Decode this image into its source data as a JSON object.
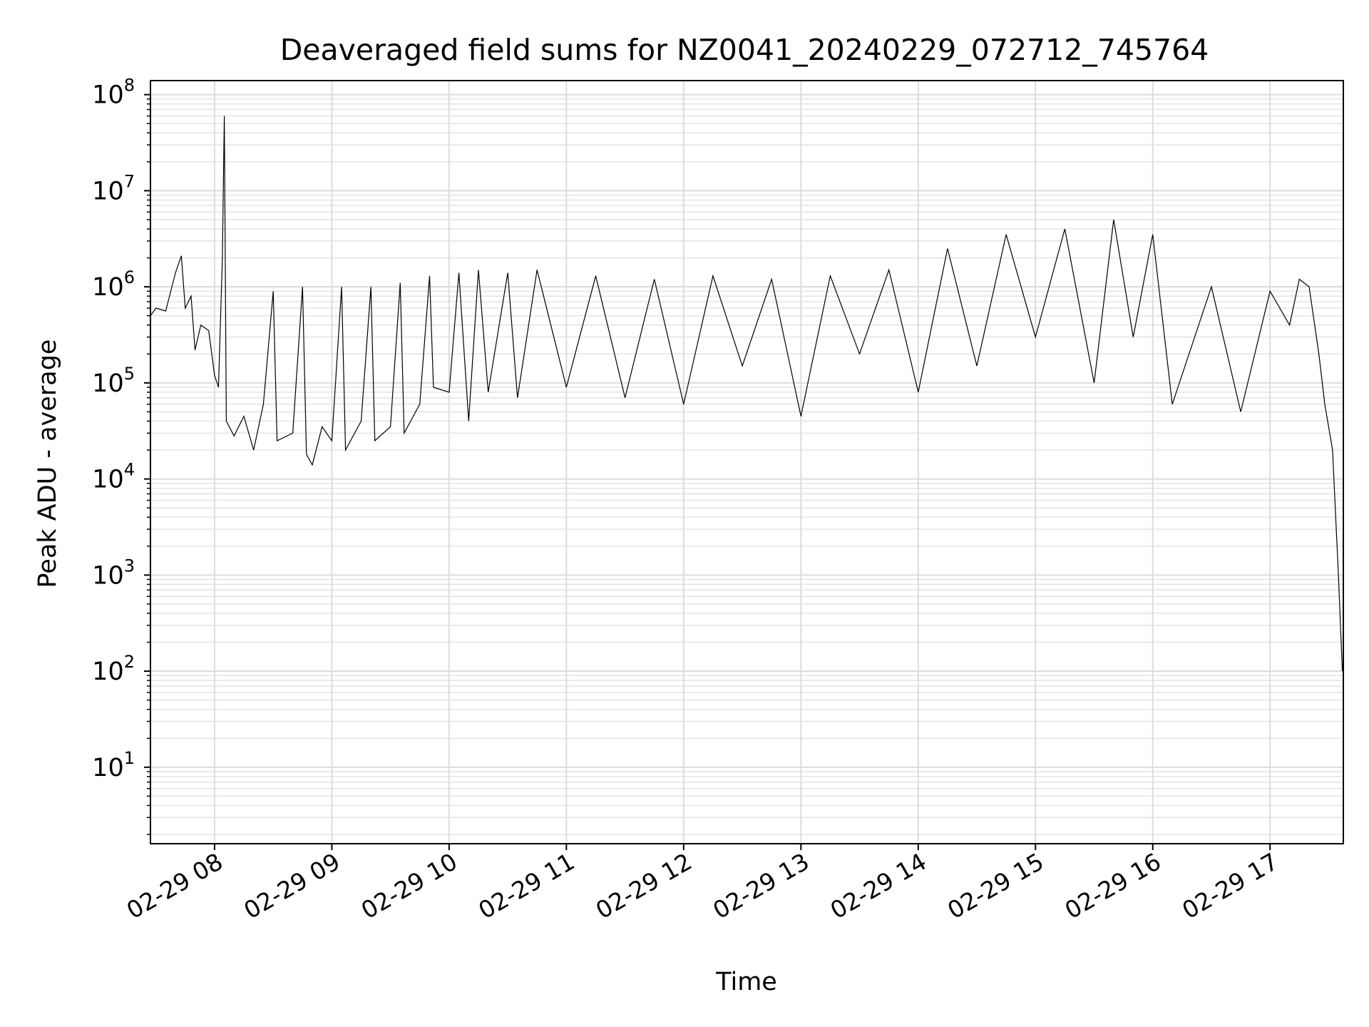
{
  "chart_data": {
    "type": "line",
    "title": "Deaveraged field sums for NZ0041_20240229_072712_745764",
    "xlabel": "Time",
    "ylabel": "Peak ADU - average",
    "yscale": "log",
    "ylim": [
      1.6,
      140000000
    ],
    "xlim": [
      "2024-02-29 07:27:12",
      "2024-02-29 17:37:30"
    ],
    "grid": true,
    "y_tick_labels": [
      {
        "value": 10,
        "base": "10",
        "exp": "1"
      },
      {
        "value": 100,
        "base": "10",
        "exp": "2"
      },
      {
        "value": 1000,
        "base": "10",
        "exp": "3"
      },
      {
        "value": 10000,
        "base": "10",
        "exp": "4"
      },
      {
        "value": 100000,
        "base": "10",
        "exp": "5"
      },
      {
        "value": 1000000,
        "base": "10",
        "exp": "6"
      },
      {
        "value": 10000000,
        "base": "10",
        "exp": "7"
      },
      {
        "value": 100000000,
        "base": "10",
        "exp": "8"
      }
    ],
    "x_ticks": [
      {
        "t": "2024-02-29 08:00",
        "label": "02-29 08"
      },
      {
        "t": "2024-02-29 09:00",
        "label": "02-29 09"
      },
      {
        "t": "2024-02-29 10:00",
        "label": "02-29 10"
      },
      {
        "t": "2024-02-29 11:00",
        "label": "02-29 11"
      },
      {
        "t": "2024-02-29 12:00",
        "label": "02-29 12"
      },
      {
        "t": "2024-02-29 13:00",
        "label": "02-29 13"
      },
      {
        "t": "2024-02-29 14:00",
        "label": "02-29 14"
      },
      {
        "t": "2024-02-29 15:00",
        "label": "02-29 15"
      },
      {
        "t": "2024-02-29 16:00",
        "label": "02-29 16"
      },
      {
        "t": "2024-02-29 17:00",
        "label": "02-29 17"
      }
    ],
    "series": [
      {
        "color": "#000000",
        "points": [
          [
            "2024-02-29 07:27:12",
            500000
          ],
          [
            "2024-02-29 07:30",
            600000
          ],
          [
            "2024-02-29 07:35",
            560000
          ],
          [
            "2024-02-29 07:40",
            1400000
          ],
          [
            "2024-02-29 07:43",
            2100000
          ],
          [
            "2024-02-29 07:45",
            600000
          ],
          [
            "2024-02-29 07:48",
            800000
          ],
          [
            "2024-02-29 07:50",
            220000
          ],
          [
            "2024-02-29 07:53",
            400000
          ],
          [
            "2024-02-29 07:57",
            350000
          ],
          [
            "2024-02-29 08:00",
            120000
          ],
          [
            "2024-02-29 08:02",
            90000
          ],
          [
            "2024-02-29 08:04",
            2000000
          ],
          [
            "2024-02-29 08:05",
            60000000
          ],
          [
            "2024-02-29 08:06",
            40000
          ],
          [
            "2024-02-29 08:10",
            28000
          ],
          [
            "2024-02-29 08:15",
            45000
          ],
          [
            "2024-02-29 08:20",
            20000
          ],
          [
            "2024-02-29 08:25",
            60000
          ],
          [
            "2024-02-29 08:30",
            900000
          ],
          [
            "2024-02-29 08:32",
            25000
          ],
          [
            "2024-02-29 08:40",
            30000
          ],
          [
            "2024-02-29 08:45",
            1000000
          ],
          [
            "2024-02-29 08:47",
            18000
          ],
          [
            "2024-02-29 08:50",
            14000
          ],
          [
            "2024-02-29 08:55",
            35000
          ],
          [
            "2024-02-29 09:00",
            25000
          ],
          [
            "2024-02-29 09:05",
            1000000
          ],
          [
            "2024-02-29 09:07",
            20000
          ],
          [
            "2024-02-29 09:15",
            40000
          ],
          [
            "2024-02-29 09:20",
            1000000
          ],
          [
            "2024-02-29 09:22",
            25000
          ],
          [
            "2024-02-29 09:30",
            35000
          ],
          [
            "2024-02-29 09:35",
            1100000
          ],
          [
            "2024-02-29 09:37",
            30000
          ],
          [
            "2024-02-29 09:45",
            60000
          ],
          [
            "2024-02-29 09:50",
            1300000
          ],
          [
            "2024-02-29 09:52",
            90000
          ],
          [
            "2024-02-29 10:00",
            80000
          ],
          [
            "2024-02-29 10:05",
            1400000
          ],
          [
            "2024-02-29 10:10",
            40000
          ],
          [
            "2024-02-29 10:15",
            1500000
          ],
          [
            "2024-02-29 10:20",
            80000
          ],
          [
            "2024-02-29 10:30",
            1400000
          ],
          [
            "2024-02-29 10:35",
            70000
          ],
          [
            "2024-02-29 10:45",
            1500000
          ],
          [
            "2024-02-29 11:00",
            90000
          ],
          [
            "2024-02-29 11:15",
            1300000
          ],
          [
            "2024-02-29 11:30",
            70000
          ],
          [
            "2024-02-29 11:45",
            1200000
          ],
          [
            "2024-02-29 12:00",
            60000
          ],
          [
            "2024-02-29 12:15",
            1300000
          ],
          [
            "2024-02-29 12:30",
            150000
          ],
          [
            "2024-02-29 12:45",
            1200000
          ],
          [
            "2024-02-29 13:00",
            45000
          ],
          [
            "2024-02-29 13:15",
            1300000
          ],
          [
            "2024-02-29 13:30",
            200000
          ],
          [
            "2024-02-29 13:45",
            1500000
          ],
          [
            "2024-02-29 14:00",
            80000
          ],
          [
            "2024-02-29 14:15",
            2500000
          ],
          [
            "2024-02-29 14:30",
            150000
          ],
          [
            "2024-02-29 14:45",
            3500000
          ],
          [
            "2024-02-29 15:00",
            300000
          ],
          [
            "2024-02-29 15:15",
            4000000
          ],
          [
            "2024-02-29 15:30",
            100000
          ],
          [
            "2024-02-29 15:40",
            5000000
          ],
          [
            "2024-02-29 15:50",
            300000
          ],
          [
            "2024-02-29 16:00",
            3500000
          ],
          [
            "2024-02-29 16:10",
            60000
          ],
          [
            "2024-02-29 16:30",
            1000000
          ],
          [
            "2024-02-29 16:45",
            50000
          ],
          [
            "2024-02-29 17:00",
            900000
          ],
          [
            "2024-02-29 17:10",
            400000
          ],
          [
            "2024-02-29 17:15",
            1200000
          ],
          [
            "2024-02-29 17:20",
            1000000
          ],
          [
            "2024-02-29 17:25",
            200000
          ],
          [
            "2024-02-29 17:28",
            60000
          ],
          [
            "2024-02-29 17:32",
            20000
          ],
          [
            "2024-02-29 17:35",
            1000
          ],
          [
            "2024-02-29 17:37",
            100
          ]
        ]
      }
    ]
  }
}
